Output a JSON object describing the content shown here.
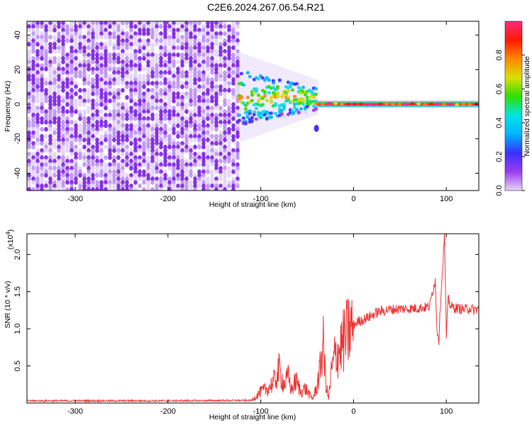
{
  "title": "C2E6.2024.267.06.54.R21",
  "chart_data": [
    {
      "type": "heatmap",
      "xlabel": "Height of straight line (km)",
      "ylabel": "Frequency (Hz)",
      "xlim": [
        -352,
        135
      ],
      "ylim": [
        -50,
        48
      ],
      "xticks": [
        -300,
        -200,
        -100,
        0,
        100
      ],
      "yticks": [
        -40,
        -20,
        0,
        20,
        40
      ],
      "colorbar": {
        "label": "Normalized spectral amplitude",
        "range": [
          0.0,
          1.0
        ],
        "ticks": [
          0.0,
          0.2,
          0.4,
          0.6,
          0.8
        ],
        "colors": [
          "#e8d4f5",
          "#9a3df0",
          "#3a30ff",
          "#00b6ff",
          "#00e5e5",
          "#2ee000",
          "#d8e000",
          "#ff8800",
          "#ff1a00",
          "#ff2a80"
        ]
      },
      "regions": [
        {
          "name": "noise",
          "x_range": [
            -352,
            -123
          ],
          "f_range": [
            -50,
            48
          ],
          "amplitude": 0.1
        },
        {
          "name": "signal-onset",
          "x_range": [
            -123,
            -40
          ],
          "f_center": 4,
          "f_halfwidth": 9,
          "amplitude": 0.45
        },
        {
          "name": "signal-steady",
          "x_range": [
            -40,
            135
          ],
          "f_center": 0,
          "f_halfwidth": 2,
          "amplitude": 0.95
        },
        {
          "name": "isolated-blob",
          "x": -40,
          "f": -14,
          "amplitude": 0.3
        }
      ]
    },
    {
      "type": "line",
      "xlabel": "Height of straight line (km)",
      "ylabel": "SNR (10 * v/v)",
      "y_multiplier": "(x10",
      "y_multiplier_exp": "4",
      "y_multiplier_close": ")",
      "xlim": [
        -352,
        135
      ],
      "ylim": [
        0,
        22800
      ],
      "xticks": [
        -300,
        -200,
        -100,
        0,
        100
      ],
      "yticks": [
        0.5,
        1.0,
        1.5,
        2.0
      ],
      "ytick_labels": [
        "0.5",
        "1.0",
        "1.5",
        "2.0"
      ],
      "series": [
        {
          "color": "#ee3333",
          "x": [
            -352,
            -300,
            -200,
            -110,
            -100,
            -92,
            -85,
            -80,
            -75,
            -70,
            -67,
            -62,
            -57,
            -52,
            -47,
            -44,
            -40,
            -36,
            -33,
            -30,
            -27,
            -24,
            -20,
            -16,
            -12,
            -8,
            -4,
            0,
            5,
            10,
            15,
            20,
            25,
            30,
            40,
            50,
            60,
            70,
            78,
            82,
            85,
            88,
            90,
            92,
            94,
            96,
            98,
            100,
            102,
            105,
            110,
            115,
            120,
            125,
            130,
            135
          ],
          "y": [
            300,
            300,
            300,
            350,
            1500,
            2000,
            3000,
            4500,
            2500,
            3500,
            1800,
            3000,
            1500,
            2000,
            1000,
            600,
            2000,
            4500,
            8500,
            3000,
            500,
            4000,
            6500,
            7000,
            8000,
            9000,
            10000,
            10500,
            11000,
            11200,
            11500,
            11800,
            12200,
            12400,
            12600,
            12700,
            12700,
            12800,
            12900,
            13000,
            15000,
            16500,
            10000,
            8500,
            14500,
            18000,
            22800,
            9000,
            14000,
            13000,
            12800,
            12700,
            12600,
            12800,
            12500,
            12800
          ]
        }
      ]
    }
  ]
}
